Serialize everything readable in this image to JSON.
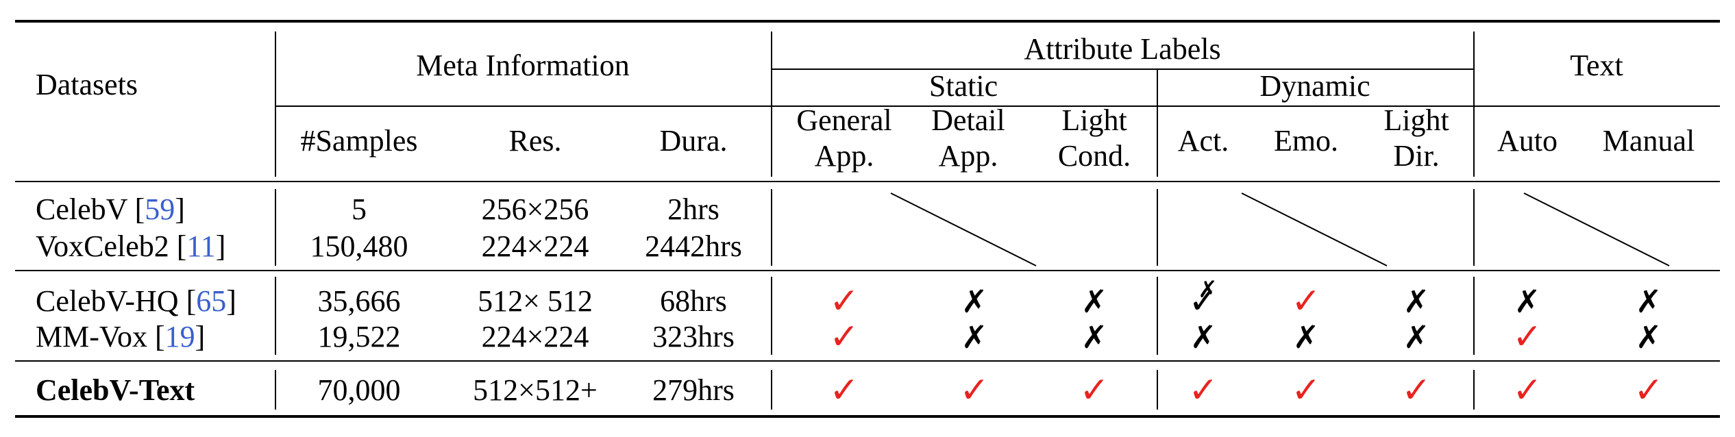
{
  "header": {
    "datasets": "Datasets",
    "meta_information": "Meta Information",
    "attribute_labels": "Attribute Labels",
    "text": "Text",
    "static": "Static",
    "dynamic": "Dynamic",
    "samples": "#Samples",
    "res": "Res.",
    "dura": "Dura.",
    "general_app_1": "General",
    "general_app_2": "App.",
    "detail_app_1": "Detail",
    "detail_app_2": "App.",
    "light_cond_1": "Light",
    "light_cond_2": "Cond.",
    "act": "Act.",
    "emo": "Emo.",
    "light_dir_1": "Light",
    "light_dir_2": "Dir.",
    "auto": "Auto",
    "manual": "Manual"
  },
  "rows": [
    {
      "name": "CelebV ",
      "ref": "59",
      "samples": "5",
      "res": "256×256",
      "dura": "2hrs"
    },
    {
      "name": "VoxCeleb2 ",
      "ref": "11",
      "samples": "150,480",
      "res": "224×224",
      "dura": "2442hrs"
    },
    {
      "name": "CelebV-HQ ",
      "ref": "65",
      "samples": "35,666",
      "res": "512× 512",
      "dura": "68hrs",
      "marks": [
        "check",
        "cross",
        "cross",
        "partial",
        "check",
        "cross",
        "cross",
        "cross"
      ]
    },
    {
      "name": "MM-Vox ",
      "ref": "19",
      "samples": "19,522",
      "res": "224×224",
      "dura": "323hrs",
      "marks": [
        "check",
        "cross",
        "cross",
        "cross",
        "cross",
        "cross",
        "check",
        "cross"
      ]
    },
    {
      "name": "CelebV-Text",
      "samples": "70,000",
      "res": "512×512+",
      "dura": "279hrs",
      "marks": [
        "check",
        "check",
        "check",
        "check",
        "check",
        "check",
        "check",
        "check"
      ]
    }
  ],
  "symbols": {
    "check": "✓",
    "cross": "✗",
    "partial": "✓"
  },
  "colors": {
    "check": "#e8231f",
    "cross": "#000000",
    "ref": "#3a5fcd"
  }
}
